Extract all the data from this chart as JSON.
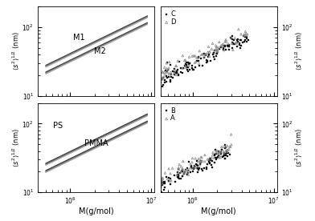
{
  "top_left": {
    "label_M1": "M1",
    "label_M2": "M2",
    "xlim": [
      400000.0,
      11000000.0
    ],
    "ylim": [
      10,
      200
    ]
  },
  "top_right": {
    "label_C": "C",
    "label_D": "D",
    "xlim": [
      400000.0,
      11000000.0
    ],
    "ylim": [
      10,
      200
    ]
  },
  "bottom_left": {
    "label_PS": "PS",
    "label_PMMA": "PMMA",
    "xlabel": "M(g/mol)",
    "xlim": [
      400000.0,
      11000000.0
    ],
    "ylim": [
      10,
      200
    ]
  },
  "bottom_right": {
    "label_A": "A",
    "label_B": "B",
    "xlabel": "M(g/mol)",
    "xlim": [
      400000.0,
      11000000.0
    ],
    "ylim": [
      10,
      200
    ]
  },
  "common": {
    "background": "#ffffff",
    "ylabel_left": "$\\langle s^2\\rangle^{1/2}$ (nm)",
    "ylabel_right": "$\\langle s^2\\rangle^{1/2}$ (nm)"
  }
}
